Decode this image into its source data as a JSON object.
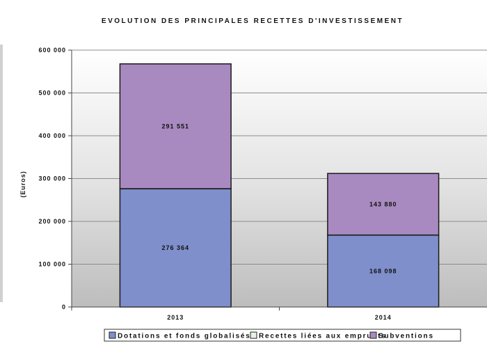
{
  "chart_data": {
    "type": "bar",
    "stacked": true,
    "title": "EVOLUTION DES PRINCIPALES RECETTES D'INVESTISSEMENT",
    "xlabel": "",
    "ylabel": "(Euros)",
    "ylim": [
      0,
      600000
    ],
    "yticks": [
      0,
      100000,
      200000,
      300000,
      400000,
      500000,
      600000
    ],
    "ytick_labels": [
      "0",
      "100 000",
      "200 000",
      "300 000",
      "400 000",
      "500 000",
      "600 000"
    ],
    "categories": [
      "2013",
      "2014"
    ],
    "grid": true,
    "legend_position": "bottom",
    "series": [
      {
        "name": "Dotations et fonds globalisés",
        "values": [
          276364,
          168098
        ],
        "labels": [
          "276 364",
          "168 098"
        ],
        "color": "#7f8fcb"
      },
      {
        "name": "Recettes liées aux emprunts",
        "values": [
          0,
          0
        ],
        "labels": [
          "0",
          "0"
        ],
        "color": "#e6f3e4"
      },
      {
        "name": "Subventions",
        "values": [
          291551,
          143880
        ],
        "labels": [
          "291 551",
          "143 880"
        ],
        "color": "#a98ac0"
      }
    ]
  }
}
